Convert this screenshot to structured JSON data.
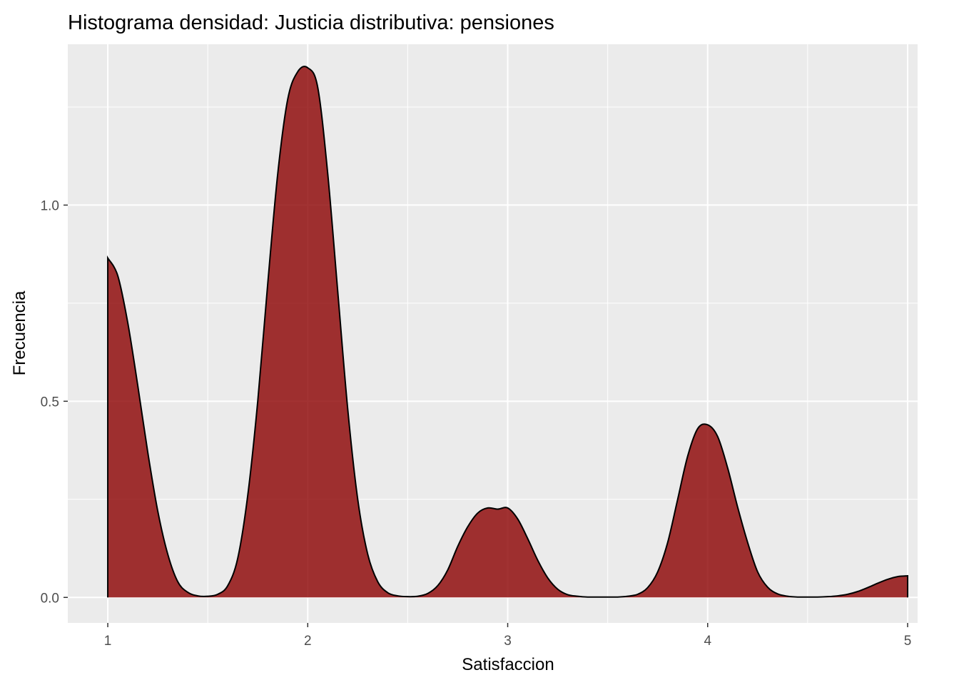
{
  "chart_data": {
    "type": "area",
    "title": "Histograma densidad: Justicia distributiva: pensiones",
    "xlabel": "Satisfaccion",
    "ylabel": "Frecuencia",
    "xlim": [
      0.8,
      5.05
    ],
    "ylim": [
      -0.065,
      1.41
    ],
    "x_ticks": [
      1,
      2,
      3,
      4,
      5
    ],
    "x_tick_labels": [
      "1",
      "2",
      "3",
      "4",
      "5"
    ],
    "y_ticks": [
      0.0,
      0.5,
      1.0
    ],
    "y_tick_labels": [
      "0.0",
      "0.5",
      "1.0"
    ],
    "grid": true,
    "legend": "none",
    "fill_color": "#8B0000",
    "fill_opacity": 0.8,
    "line_color": "#000000",
    "panel_color": "#EBEBEB",
    "series": [
      {
        "x": [
          1.0,
          1.05,
          1.1,
          1.15,
          1.2,
          1.25,
          1.3,
          1.35,
          1.4,
          1.45,
          1.5,
          1.55,
          1.6,
          1.65,
          1.7,
          1.75,
          1.8,
          1.85,
          1.9,
          1.95,
          2.0,
          2.05,
          2.1,
          2.15,
          2.2,
          2.25,
          2.3,
          2.35,
          2.4,
          2.45,
          2.5,
          2.55,
          2.6,
          2.65,
          2.7,
          2.75,
          2.8,
          2.85,
          2.9,
          2.95,
          3.0,
          3.05,
          3.1,
          3.15,
          3.2,
          3.25,
          3.3,
          3.35,
          3.4,
          3.45,
          3.5,
          3.55,
          3.6,
          3.65,
          3.7,
          3.75,
          3.8,
          3.85,
          3.9,
          3.95,
          4.0,
          4.05,
          4.1,
          4.15,
          4.2,
          4.25,
          4.3,
          4.35,
          4.4,
          4.45,
          4.5,
          4.55,
          4.6,
          4.65,
          4.7,
          4.75,
          4.8,
          4.85,
          4.9,
          4.95,
          5.0
        ],
        "y": [
          0.865,
          0.82,
          0.7,
          0.54,
          0.37,
          0.22,
          0.11,
          0.04,
          0.013,
          0.004,
          0.003,
          0.008,
          0.03,
          0.1,
          0.26,
          0.5,
          0.8,
          1.08,
          1.27,
          1.34,
          1.35,
          1.3,
          1.08,
          0.78,
          0.48,
          0.25,
          0.11,
          0.04,
          0.012,
          0.004,
          0.002,
          0.003,
          0.01,
          0.03,
          0.07,
          0.13,
          0.18,
          0.215,
          0.228,
          0.225,
          0.228,
          0.2,
          0.15,
          0.095,
          0.05,
          0.021,
          0.007,
          0.003,
          0.001,
          0.001,
          0.001,
          0.001,
          0.003,
          0.008,
          0.025,
          0.065,
          0.14,
          0.25,
          0.36,
          0.43,
          0.44,
          0.41,
          0.33,
          0.23,
          0.14,
          0.065,
          0.026,
          0.009,
          0.003,
          0.001,
          0.001,
          0.001,
          0.002,
          0.004,
          0.008,
          0.015,
          0.025,
          0.036,
          0.046,
          0.053,
          0.055
        ]
      }
    ]
  }
}
